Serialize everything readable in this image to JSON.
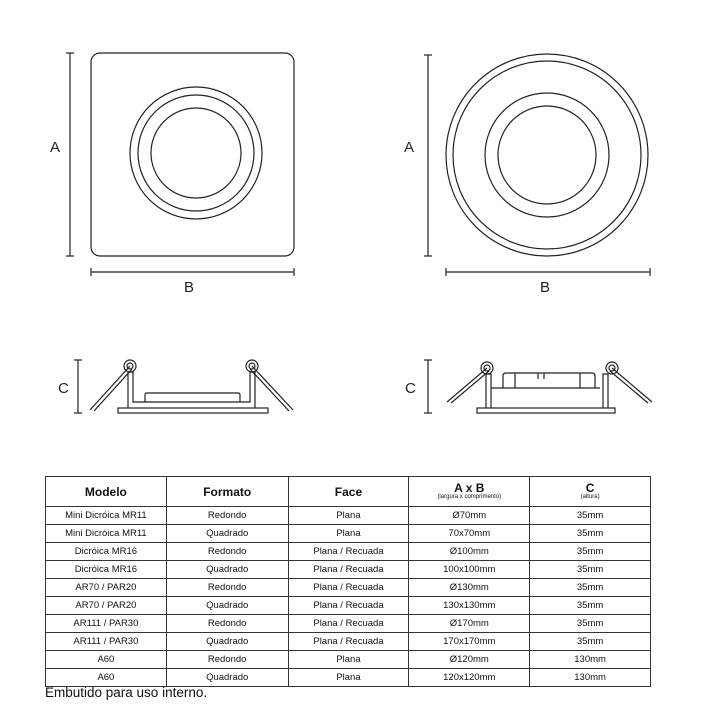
{
  "drawings": {
    "square_top": {
      "label_a": "A",
      "label_b": "B"
    },
    "round_top": {
      "label_a": "A",
      "label_b": "B"
    },
    "profile_flat": {
      "label_c": "C"
    },
    "profile_recessed": {
      "label_c": "C"
    }
  },
  "table": {
    "headers": [
      {
        "main": "Modelo",
        "sub": ""
      },
      {
        "main": "Formato",
        "sub": ""
      },
      {
        "main": "Face",
        "sub": ""
      },
      {
        "main": "A x B",
        "sub": "(largura x comprimento)"
      },
      {
        "main": "C",
        "sub": "(altura)"
      }
    ],
    "rows": [
      [
        "Mini Dicróica MR11",
        "Redondo",
        "Plana",
        "Ø70mm",
        "35mm"
      ],
      [
        "Mini Dicróica MR11",
        "Quadrado",
        "Plana",
        "70x70mm",
        "35mm"
      ],
      [
        "Dicróica MR16",
        "Redondo",
        "Plana / Recuada",
        "Ø100mm",
        "35mm"
      ],
      [
        "Dicróica MR16",
        "Quadrado",
        "Plana / Recuada",
        "100x100mm",
        "35mm"
      ],
      [
        "AR70 / PAR20",
        "Redondo",
        "Plana / Recuada",
        "Ø130mm",
        "35mm"
      ],
      [
        "AR70 / PAR20",
        "Quadrado",
        "Plana / Recuada",
        "130x130mm",
        "35mm"
      ],
      [
        "AR111 / PAR30",
        "Redondo",
        "Plana / Recuada",
        "Ø170mm",
        "35mm"
      ],
      [
        "AR111 / PAR30",
        "Quadrado",
        "Plana / Recuada",
        "170x170mm",
        "35mm"
      ],
      [
        "A60",
        "Redondo",
        "Plana",
        "Ø120mm",
        "130mm"
      ],
      [
        "A60",
        "Quadrado",
        "Plana",
        "120x120mm",
        "130mm"
      ]
    ]
  },
  "footnote": "Embutido para uso interno."
}
